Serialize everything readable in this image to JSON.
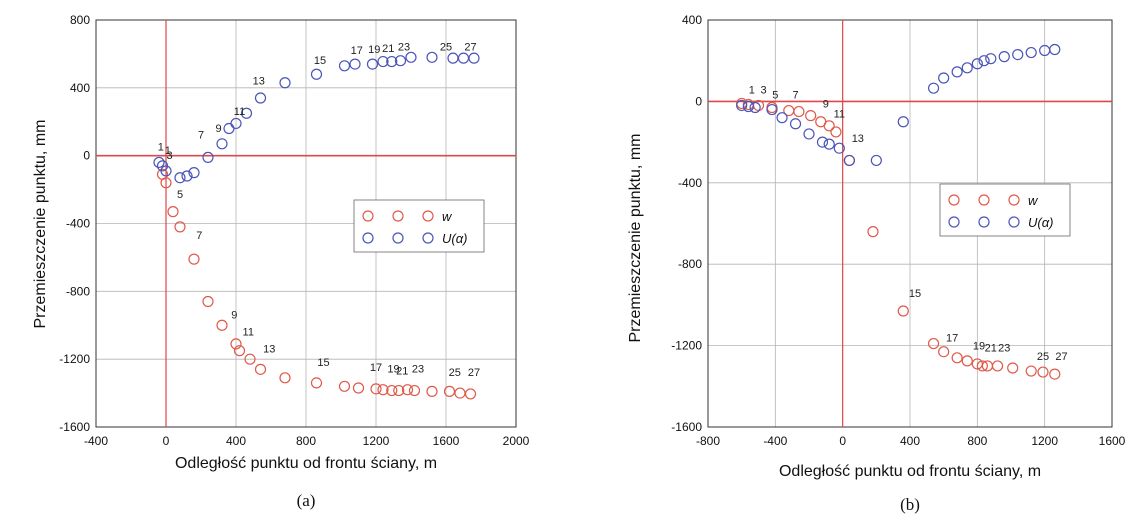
{
  "colors": {
    "w": "#e05a4a",
    "U": "#4a55b8",
    "zero_line": "#e0464a",
    "grid": "#b5b5b5",
    "frame": "#333333"
  },
  "chart_data": [
    {
      "id": "a",
      "type": "scatter",
      "subtitle": "(a)",
      "xlabel": "Odległość punktu od frontu ściany, m",
      "ylabel": "Przemieszczenie punktu, mm",
      "xlim": [
        -400,
        2000
      ],
      "ylim": [
        -1600,
        800
      ],
      "xticks": [
        -400,
        0,
        400,
        800,
        1200,
        1600,
        2000
      ],
      "yticks": [
        -1600,
        -1200,
        -800,
        -400,
        0,
        400,
        800
      ],
      "grid": true,
      "legend": {
        "position": "center-right",
        "entries": [
          {
            "series": "w",
            "label": "w"
          },
          {
            "series": "U",
            "label": "U(α)"
          }
        ]
      },
      "series": [
        {
          "key": "w",
          "name": "w",
          "points": [
            [
              -20,
              -110
            ],
            [
              0,
              -160
            ],
            [
              40,
              -330
            ],
            [
              80,
              -420
            ],
            [
              160,
              -610
            ],
            [
              240,
              -860
            ],
            [
              320,
              -1000
            ],
            [
              400,
              -1110
            ],
            [
              420,
              -1150
            ],
            [
              480,
              -1200
            ],
            [
              540,
              -1260
            ],
            [
              680,
              -1310
            ],
            [
              860,
              -1340
            ],
            [
              1020,
              -1360
            ],
            [
              1100,
              -1370
            ],
            [
              1200,
              -1375
            ],
            [
              1240,
              -1380
            ],
            [
              1290,
              -1385
            ],
            [
              1330,
              -1385
            ],
            [
              1380,
              -1380
            ],
            [
              1420,
              -1385
            ],
            [
              1520,
              -1390
            ],
            [
              1620,
              -1390
            ],
            [
              1680,
              -1400
            ],
            [
              1740,
              -1405
            ]
          ],
          "labels": [
            {
              "text": "3",
              "x": 20,
              "y": -20
            },
            {
              "text": "5",
              "x": 80,
              "y": -250
            },
            {
              "text": "7",
              "x": 190,
              "y": -490
            },
            {
              "text": "9",
              "x": 390,
              "y": -960
            },
            {
              "text": "11",
              "x": 470,
              "y": -1060
            },
            {
              "text": "13",
              "x": 590,
              "y": -1160
            },
            {
              "text": "15",
              "x": 900,
              "y": -1240
            },
            {
              "text": "17",
              "x": 1200,
              "y": -1270
            },
            {
              "text": "19",
              "x": 1300,
              "y": -1280
            },
            {
              "text": "21",
              "x": 1350,
              "y": -1290
            },
            {
              "text": "23",
              "x": 1440,
              "y": -1280
            },
            {
              "text": "25",
              "x": 1650,
              "y": -1300
            },
            {
              "text": "27",
              "x": 1760,
              "y": -1300
            }
          ]
        },
        {
          "key": "U",
          "name": "U(α)",
          "points": [
            [
              -40,
              -40
            ],
            [
              -20,
              -60
            ],
            [
              0,
              -90
            ],
            [
              80,
              -130
            ],
            [
              120,
              -120
            ],
            [
              160,
              -100
            ],
            [
              240,
              -10
            ],
            [
              320,
              70
            ],
            [
              360,
              160
            ],
            [
              400,
              190
            ],
            [
              460,
              250
            ],
            [
              540,
              340
            ],
            [
              680,
              430
            ],
            [
              860,
              480
            ],
            [
              1020,
              530
            ],
            [
              1080,
              540
            ],
            [
              1180,
              540
            ],
            [
              1240,
              555
            ],
            [
              1290,
              555
            ],
            [
              1340,
              560
            ],
            [
              1400,
              580
            ],
            [
              1520,
              580
            ],
            [
              1640,
              575
            ],
            [
              1700,
              575
            ],
            [
              1760,
              575
            ]
          ],
          "labels": [
            {
              "text": "1",
              "x": -30,
              "y": 30
            },
            {
              "text": "1",
              "x": 10,
              "y": 10
            },
            {
              "text": "7",
              "x": 200,
              "y": 100
            },
            {
              "text": "9",
              "x": 300,
              "y": 140
            },
            {
              "text": "11",
              "x": 420,
              "y": 240
            },
            {
              "text": "13",
              "x": 530,
              "y": 420
            },
            {
              "text": "15",
              "x": 880,
              "y": 540
            },
            {
              "text": "17",
              "x": 1090,
              "y": 600
            },
            {
              "text": "19",
              "x": 1190,
              "y": 605
            },
            {
              "text": "21",
              "x": 1270,
              "y": 610
            },
            {
              "text": "23",
              "x": 1360,
              "y": 620
            },
            {
              "text": "25",
              "x": 1600,
              "y": 620
            },
            {
              "text": "27",
              "x": 1740,
              "y": 620
            }
          ]
        }
      ]
    },
    {
      "id": "b",
      "type": "scatter",
      "subtitle": "(b)",
      "xlabel": "Odległość punktu od frontu ściany, m",
      "ylabel": "Przemieszczenie punktu, mm",
      "xlim": [
        -800,
        1600
      ],
      "ylim": [
        -1600,
        400
      ],
      "xticks": [
        -800,
        -400,
        0,
        400,
        800,
        1200,
        1600
      ],
      "yticks": [
        -1600,
        -1200,
        -800,
        -400,
        0,
        400
      ],
      "grid": true,
      "legend": {
        "position": "center-right",
        "entries": [
          {
            "series": "w",
            "label": "w"
          },
          {
            "series": "U",
            "label": "U(α)"
          }
        ]
      },
      "series": [
        {
          "key": "w",
          "name": "w",
          "points": [
            [
              -600,
              -10
            ],
            [
              -560,
              -15
            ],
            [
              -500,
              -20
            ],
            [
              -420,
              -30
            ],
            [
              -320,
              -45
            ],
            [
              -260,
              -50
            ],
            [
              -190,
              -70
            ],
            [
              -130,
              -100
            ],
            [
              -80,
              -120
            ],
            [
              -40,
              -150
            ],
            [
              40,
              -290
            ],
            [
              180,
              -640
            ],
            [
              360,
              -1030
            ],
            [
              540,
              -1190
            ],
            [
              600,
              -1230
            ],
            [
              680,
              -1260
            ],
            [
              740,
              -1275
            ],
            [
              800,
              -1290
            ],
            [
              830,
              -1300
            ],
            [
              860,
              -1300
            ],
            [
              920,
              -1300
            ],
            [
              1010,
              -1310
            ],
            [
              1120,
              -1325
            ],
            [
              1190,
              -1330
            ],
            [
              1260,
              -1340
            ]
          ],
          "labels": [
            {
              "text": "5",
              "x": -400,
              "y": 15
            },
            {
              "text": "7",
              "x": -280,
              "y": 15
            },
            {
              "text": "9",
              "x": -100,
              "y": -30
            },
            {
              "text": "11",
              "x": -20,
              "y": -80
            },
            {
              "text": "15",
              "x": 430,
              "y": -960
            },
            {
              "text": "17",
              "x": 650,
              "y": -1180
            },
            {
              "text": "19",
              "x": 810,
              "y": -1220
            },
            {
              "text": "21",
              "x": 880,
              "y": -1230
            },
            {
              "text": "23",
              "x": 960,
              "y": -1230
            },
            {
              "text": "25",
              "x": 1190,
              "y": -1270
            },
            {
              "text": "27",
              "x": 1300,
              "y": -1270
            }
          ]
        },
        {
          "key": "U",
          "name": "U(α)",
          "points": [
            [
              -600,
              -20
            ],
            [
              -560,
              -25
            ],
            [
              -520,
              -30
            ],
            [
              -420,
              -40
            ],
            [
              -360,
              -80
            ],
            [
              -280,
              -110
            ],
            [
              -200,
              -160
            ],
            [
              -120,
              -200
            ],
            [
              -80,
              -210
            ],
            [
              -20,
              -230
            ],
            [
              40,
              -290
            ],
            [
              200,
              -290
            ],
            [
              360,
              -100
            ],
            [
              540,
              65
            ],
            [
              600,
              115
            ],
            [
              680,
              145
            ],
            [
              740,
              165
            ],
            [
              800,
              185
            ],
            [
              840,
              200
            ],
            [
              880,
              210
            ],
            [
              960,
              220
            ],
            [
              1040,
              230
            ],
            [
              1120,
              240
            ],
            [
              1200,
              250
            ],
            [
              1260,
              255
            ]
          ],
          "labels": [
            {
              "text": "1",
              "x": -540,
              "y": 40
            },
            {
              "text": "3",
              "x": -470,
              "y": 40
            },
            {
              "text": "13",
              "x": 90,
              "y": -200
            }
          ]
        }
      ]
    }
  ]
}
